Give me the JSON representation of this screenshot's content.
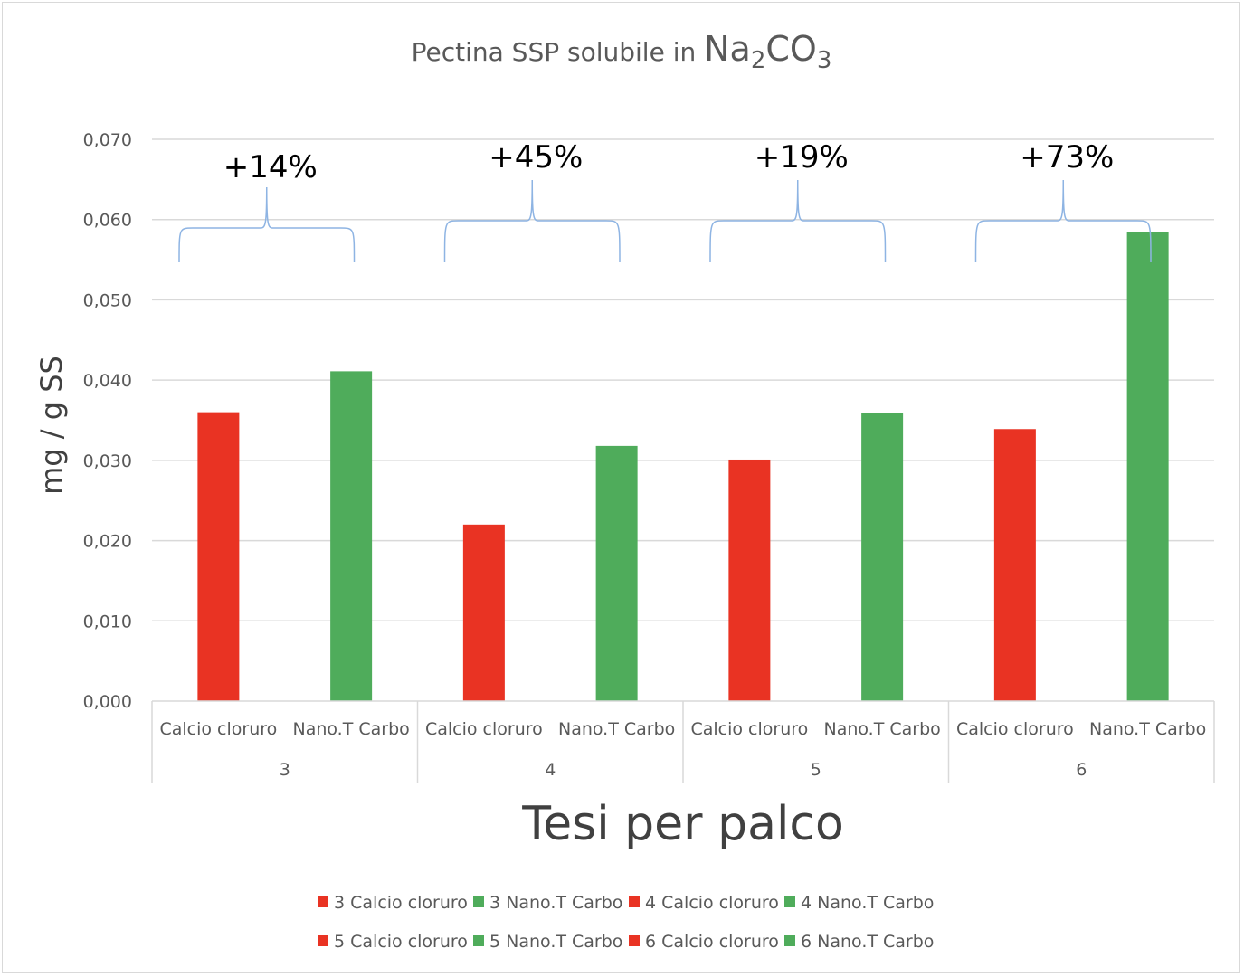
{
  "chart_data": {
    "type": "bar",
    "title": "Pectina SSP solubile in Na2CO3",
    "title_parts": {
      "prefix": "Pectina SSP solubile in ",
      "formula_a": "Na",
      "sub_a": "2",
      "formula_b": "CO",
      "sub_b": "3"
    },
    "xlabel": "Tesi per palco",
    "ylabel": "mg / g SS",
    "ylim": [
      0,
      0.07
    ],
    "yticks": [
      "0,000",
      "0,010",
      "0,020",
      "0,030",
      "0,040",
      "0,050",
      "0,060",
      "0,070"
    ],
    "grid": true,
    "groups": [
      {
        "label": "3",
        "annotation": "+14%",
        "bars": [
          {
            "category": "Calcio cloruro",
            "value": 0.036,
            "color": "#e93323",
            "legend": "3 Calcio cloruro"
          },
          {
            "category": "Nano.T Carbo",
            "value": 0.0411,
            "color": "#4fac5b",
            "legend": "3 Nano.T Carbo"
          }
        ]
      },
      {
        "label": "4",
        "annotation": "+45%",
        "bars": [
          {
            "category": "Calcio cloruro",
            "value": 0.022,
            "color": "#e93323",
            "legend": "4 Calcio cloruro"
          },
          {
            "category": "Nano.T Carbo",
            "value": 0.0318,
            "color": "#4fac5b",
            "legend": "4 Nano.T Carbo"
          }
        ]
      },
      {
        "label": "5",
        "annotation": "+19%",
        "bars": [
          {
            "category": "Calcio cloruro",
            "value": 0.0301,
            "color": "#e93323",
            "legend": "5 Calcio cloruro"
          },
          {
            "category": "Nano.T Carbo",
            "value": 0.0359,
            "color": "#4fac5b",
            "legend": "5 Nano.T Carbo"
          }
        ]
      },
      {
        "label": "6",
        "annotation": "+73%",
        "bars": [
          {
            "category": "Calcio cloruro",
            "value": 0.0339,
            "color": "#e93323",
            "legend": "6 Calcio cloruro"
          },
          {
            "category": "Nano.T Carbo",
            "value": 0.0585,
            "color": "#4fac5b",
            "legend": "6 Nano.T Carbo"
          }
        ]
      }
    ],
    "legend_position": "bottom",
    "brace_color": "#8eb4e3"
  }
}
